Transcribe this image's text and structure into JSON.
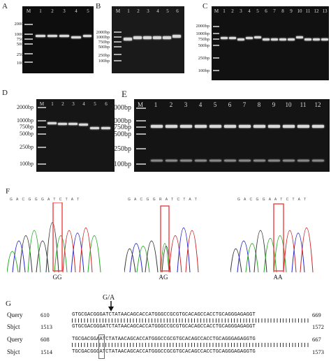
{
  "panels": {
    "A": {
      "label": "A",
      "lanes": [
        "M",
        "1",
        "2",
        "3",
        "4",
        "5"
      ],
      "sizes": [
        "2000bp",
        "1000bp",
        "750bp",
        "500bp",
        "250bp",
        "100bp"
      ]
    },
    "B": {
      "label": "B",
      "lanes": [
        "M",
        "1",
        "2",
        "3",
        "4",
        "5",
        "6"
      ],
      "sizes": [
        "2000bp",
        "1000bp",
        "750bp",
        "500bp",
        "250bp",
        "100bp"
      ]
    },
    "C": {
      "label": "C",
      "lanes": [
        "M",
        "1",
        "2",
        "3",
        "4",
        "5",
        "6",
        "7",
        "8",
        "9",
        "10",
        "11",
        "12",
        "13"
      ],
      "sizes": [
        "2000bp",
        "1000bp",
        "750bp",
        "500bp",
        "250bp",
        "100bp"
      ]
    },
    "D": {
      "label": "D",
      "lanes": [
        "M",
        "1",
        "2",
        "3",
        "4",
        "5",
        "6"
      ],
      "sizes": [
        "2000bp",
        "1000bp",
        "750bp",
        "500bp",
        "250bp",
        "100bp"
      ]
    },
    "E": {
      "label": "E",
      "lanes": [
        "M",
        "1",
        "2",
        "3",
        "4",
        "5",
        "6",
        "7",
        "8",
        "9",
        "10",
        "11",
        "12"
      ],
      "sizes": [
        "2000bp",
        "1000bp",
        "750bp",
        "500bp",
        "250bp",
        "100bp"
      ]
    }
  },
  "panelF": {
    "label": "F",
    "genotypes": [
      "GG",
      "AG",
      "AA"
    ],
    "seq_GG": "G A C G G G A T C T A T",
    "seq_AG": "G A C G G R A T C T A T",
    "seq_AA": "G A C G G A A T C T A T"
  },
  "panelG": {
    "label": "G",
    "mutation": "G/A",
    "rows": [
      {
        "label": "Query",
        "start": "610",
        "seq": "GTGCGACGGGATCTATAACAGCACCATGGGCCGCGTGCACAGCCACCTGCAGGGAGAGGT",
        "end": "669"
      },
      {
        "label": "Sbjct",
        "start": "1513",
        "seq": "GTGCGACGGGATCTATAACAGCACCATGGGCCGCGTGCACAGCCACCTGCAGGGAGAGGT",
        "end": "1572"
      },
      {
        "label": "Query",
        "start": "608",
        "seq": "TGCGACGGAATCTATAACAGCACCATGGGCCGCGTGCACAGCCACCTGCAGGGAGAGGTG",
        "end": "667"
      },
      {
        "label": "Sbjct",
        "start": "1514",
        "seq": "TGCGACGGGATCTATAACAGCACCATGGGCCGCGTGCACAGCCACCTGCAGGGAGAGGTG",
        "end": "1573"
      }
    ]
  }
}
